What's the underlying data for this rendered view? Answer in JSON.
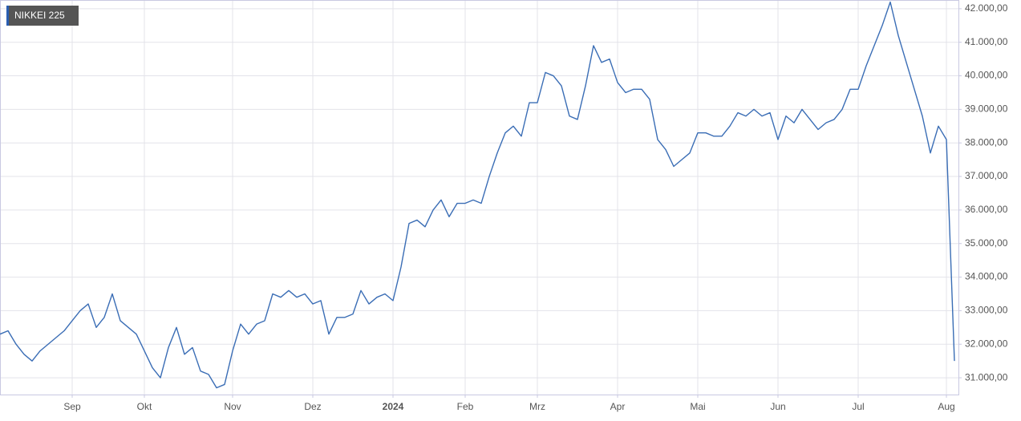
{
  "chart_data": {
    "type": "line",
    "title": "NIKKEI 225",
    "categories": [
      null,
      null,
      null,
      null,
      null,
      null,
      null,
      null,
      null,
      "Sep",
      null,
      null,
      null,
      null,
      null,
      null,
      null,
      null,
      "Okt",
      null,
      null,
      null,
      null,
      null,
      null,
      null,
      null,
      null,
      null,
      "Nov",
      null,
      null,
      null,
      null,
      null,
      null,
      null,
      null,
      null,
      "Dez",
      null,
      null,
      null,
      null,
      null,
      null,
      null,
      null,
      null,
      "2024",
      null,
      null,
      null,
      null,
      null,
      null,
      null,
      null,
      "Feb",
      null,
      null,
      null,
      null,
      null,
      null,
      null,
      null,
      "Mrz",
      null,
      null,
      null,
      null,
      null,
      null,
      null,
      null,
      null,
      "Apr",
      null,
      null,
      null,
      null,
      null,
      null,
      null,
      null,
      null,
      "Mai",
      null,
      null,
      null,
      null,
      null,
      null,
      null,
      null,
      null,
      "Jun",
      null,
      null,
      null,
      null,
      null,
      null,
      null,
      null,
      null,
      "Jul",
      null,
      null,
      null,
      null,
      null,
      null,
      null,
      null,
      null,
      null,
      "Aug",
      null
    ],
    "series": [
      {
        "name": "NIKKEI 225",
        "color": "#3a6db5",
        "values": [
          32300,
          32400,
          32000,
          31700,
          31500,
          31800,
          32000,
          32200,
          32400,
          32700,
          33000,
          33200,
          32500,
          32800,
          33500,
          32700,
          32500,
          32300,
          31800,
          31300,
          31000,
          31900,
          32500,
          31700,
          31900,
          31200,
          31100,
          30700,
          30800,
          31800,
          32600,
          32300,
          32600,
          32700,
          33500,
          33400,
          33600,
          33400,
          33500,
          33200,
          33300,
          32300,
          32800,
          32800,
          32900,
          33600,
          33200,
          33400,
          33500,
          33300,
          34300,
          35600,
          35700,
          35500,
          36000,
          36300,
          35800,
          36200,
          36200,
          36300,
          36200,
          37000,
          37700,
          38300,
          38500,
          38200,
          39200,
          39200,
          40100,
          40000,
          39700,
          38800,
          38700,
          39700,
          40900,
          40400,
          40500,
          39800,
          39500,
          39600,
          39600,
          39300,
          38100,
          37800,
          37300,
          37500,
          37700,
          38300,
          38300,
          38200,
          38200,
          38500,
          38900,
          38800,
          39000,
          38800,
          38900,
          38100,
          38800,
          38600,
          39000,
          38700,
          38400,
          38600,
          38700,
          39000,
          39600,
          39600,
          40300,
          40900,
          41500,
          42200,
          41200,
          40400,
          39600,
          38800,
          37700,
          38500,
          38100,
          31500
        ]
      }
    ],
    "ylim": [
      30500,
      42260
    ],
    "yticks": [
      {
        "value": 31000,
        "label": "31.000,00"
      },
      {
        "value": 32000,
        "label": "32.000,00"
      },
      {
        "value": 33000,
        "label": "33.000,00"
      },
      {
        "value": 34000,
        "label": "34.000,00"
      },
      {
        "value": 35000,
        "label": "35.000,00"
      },
      {
        "value": 36000,
        "label": "36.000,00"
      },
      {
        "value": 37000,
        "label": "37.000,00"
      },
      {
        "value": 38000,
        "label": "38.000,00"
      },
      {
        "value": 39000,
        "label": "39.000,00"
      },
      {
        "value": 40000,
        "label": "40.000,00"
      },
      {
        "value": 41000,
        "label": "41.000,00"
      },
      {
        "value": 42000,
        "label": "42.000,00"
      }
    ],
    "grid": true
  }
}
